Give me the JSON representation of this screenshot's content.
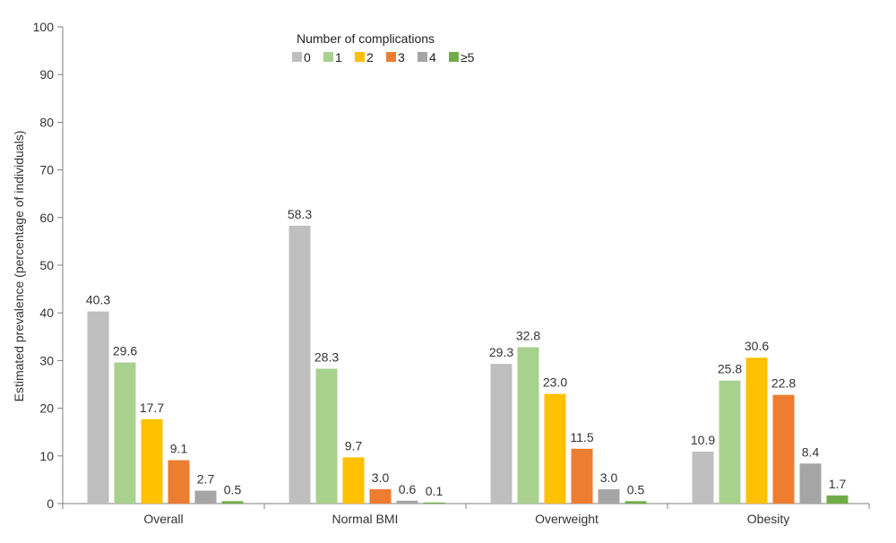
{
  "chart_data": {
    "type": "bar",
    "title": "",
    "xlabel": "",
    "ylabel": "Estimated prevalence (percentage of individuals)",
    "ylim": [
      0,
      100
    ],
    "yticks": [
      0,
      10,
      20,
      30,
      40,
      50,
      60,
      70,
      80,
      90,
      100
    ],
    "categories": [
      "Overall",
      "Normal BMI",
      "Overweight",
      "Obesity"
    ],
    "legend": {
      "title": "Number of complications",
      "placement": "top-center"
    },
    "grid": false,
    "series": [
      {
        "name": "0",
        "color": "#bfbfbf",
        "values": [
          40.3,
          58.3,
          29.3,
          10.9
        ]
      },
      {
        "name": "1",
        "color": "#a9d18e",
        "values": [
          29.6,
          28.3,
          32.8,
          25.8
        ]
      },
      {
        "name": "2",
        "color": "#ffc000",
        "values": [
          17.7,
          9.7,
          23.0,
          30.6
        ]
      },
      {
        "name": "3",
        "color": "#ed7d31",
        "values": [
          9.1,
          3.0,
          11.5,
          22.8
        ]
      },
      {
        "name": "4",
        "color": "#a5a5a5",
        "values": [
          2.7,
          0.6,
          3.0,
          8.4
        ]
      },
      {
        "name": "≥5",
        "color": "#70ad47",
        "values": [
          0.5,
          0.1,
          0.5,
          1.7
        ]
      }
    ],
    "data_labels": [
      [
        "40.3",
        "58.3",
        "29.3",
        "10.9"
      ],
      [
        "29.6",
        "28.3",
        "32.8",
        "25.8"
      ],
      [
        "17.7",
        "9.7",
        "23.0",
        "30.6"
      ],
      [
        "9.1",
        "3.0",
        "11.5",
        "22.8"
      ],
      [
        "2.7",
        "0.6",
        "3.0",
        "8.4"
      ],
      [
        "0.5",
        "0.1",
        "0.5",
        "1.7"
      ]
    ]
  }
}
